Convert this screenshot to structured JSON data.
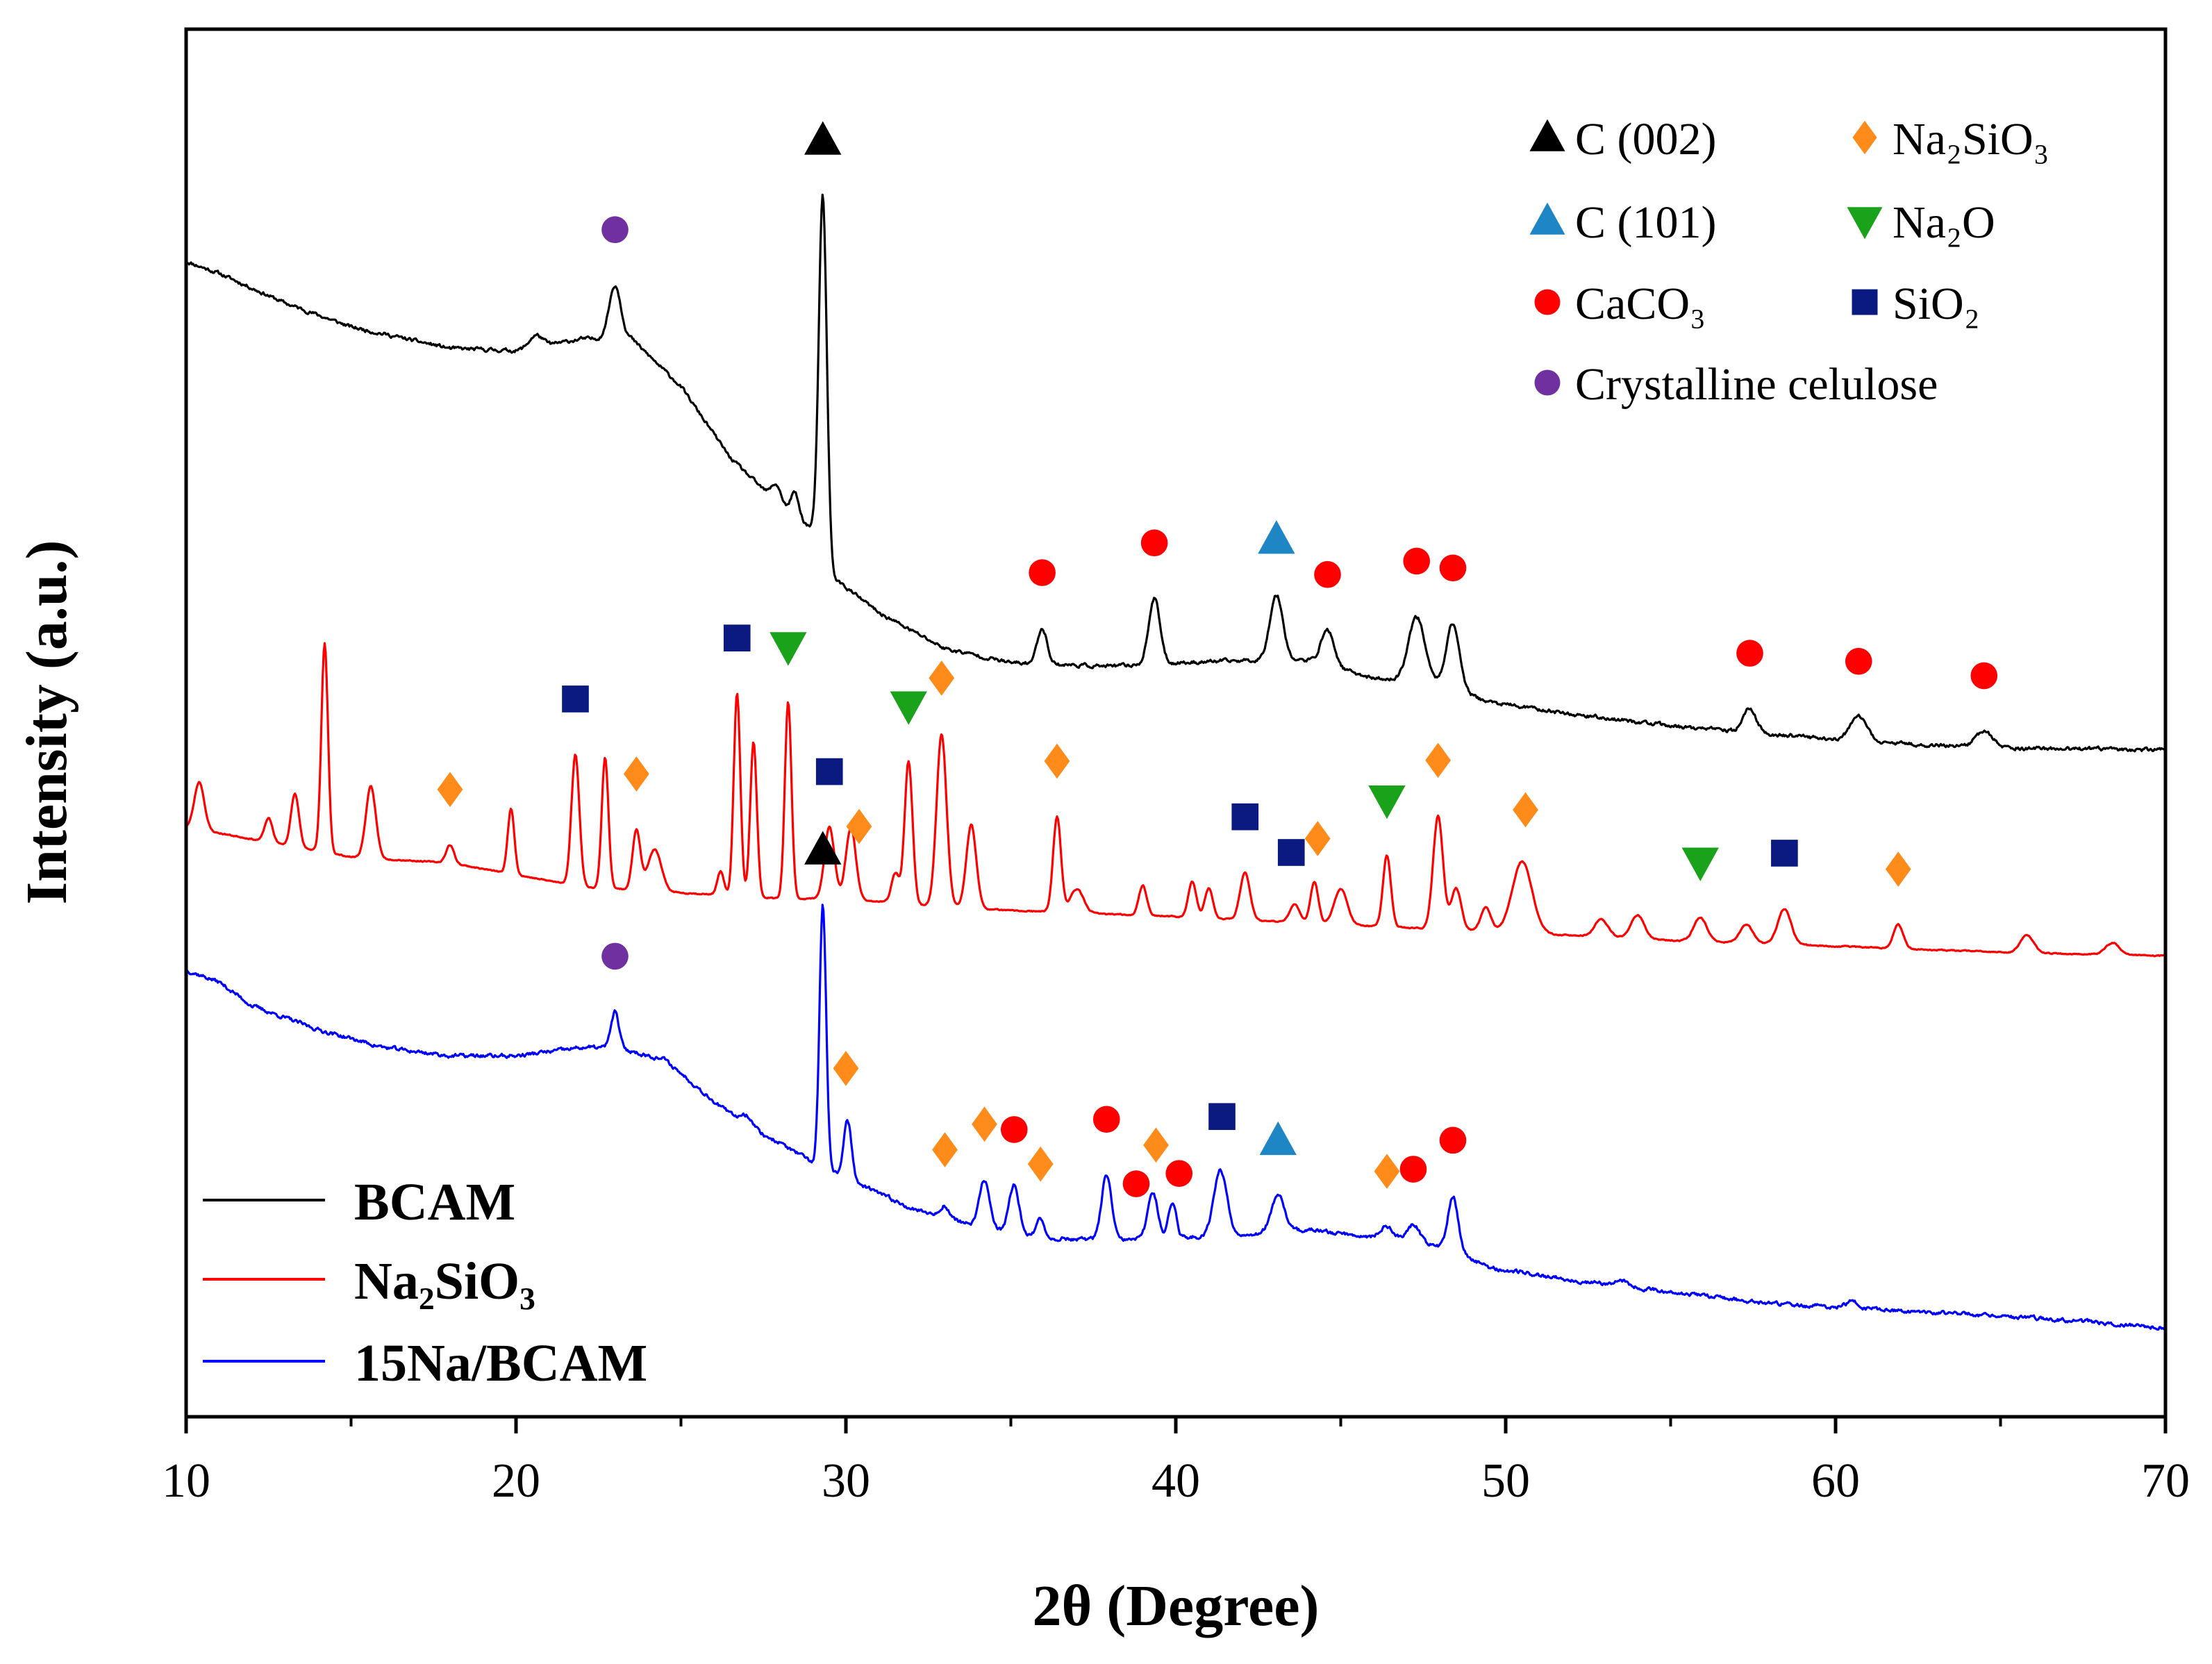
{
  "chart_data": {
    "type": "line",
    "title": "",
    "xlabel": "2θ (Degree)",
    "ylabel": "Intensity (a.u.)",
    "xlim": [
      10,
      70
    ],
    "xticks": [
      "10",
      "20",
      "30",
      "40",
      "50",
      "60",
      "70"
    ],
    "y_ticks_shown": false,
    "grid": false,
    "legend_position": "bottom-left",
    "series": [
      {
        "name": "BCAM",
        "color": "#000000",
        "noise": 0.012,
        "seed": 11,
        "baseline": [
          [
            10,
            8.55
          ],
          [
            11,
            8.45
          ],
          [
            13,
            8.2
          ],
          [
            15,
            8.0
          ],
          [
            18,
            7.82
          ],
          [
            20,
            7.8
          ],
          [
            22,
            7.9
          ],
          [
            23.5,
            7.9
          ],
          [
            25,
            7.5
          ],
          [
            26.5,
            6.9
          ],
          [
            28,
            6.5
          ],
          [
            29,
            6.3
          ],
          [
            29.6,
            5.9
          ],
          [
            31,
            5.6
          ],
          [
            33,
            5.3
          ],
          [
            35,
            5.18
          ],
          [
            38,
            5.15
          ],
          [
            40,
            5.18
          ],
          [
            42,
            5.2
          ],
          [
            44,
            5.2
          ],
          [
            46,
            5.05
          ],
          [
            48,
            5.0
          ],
          [
            49.5,
            4.85
          ],
          [
            52,
            4.75
          ],
          [
            55,
            4.65
          ],
          [
            58,
            4.58
          ],
          [
            62,
            4.5
          ],
          [
            66,
            4.46
          ],
          [
            70,
            4.45
          ]
        ],
        "peaks": [
          [
            20.6,
            0.1,
            0.2
          ],
          [
            23.0,
            0.45,
            0.18
          ],
          [
            27.9,
            0.15,
            0.15
          ],
          [
            28.45,
            0.2,
            0.12
          ],
          [
            29.3,
            3.0,
            0.12
          ],
          [
            35.95,
            0.3,
            0.15
          ],
          [
            39.35,
            0.55,
            0.17
          ],
          [
            43.05,
            0.55,
            0.2
          ],
          [
            44.6,
            0.3,
            0.2
          ],
          [
            47.3,
            0.55,
            0.25
          ],
          [
            48.4,
            0.55,
            0.2
          ],
          [
            57.4,
            0.2,
            0.2
          ],
          [
            60.7,
            0.2,
            0.25
          ],
          [
            64.5,
            0.13,
            0.25
          ]
        ]
      },
      {
        "name": "Na₂SiO₃",
        "color": "#ff0000",
        "noise": 0.004,
        "seed": 23,
        "baseline": [
          [
            10,
            3.8
          ],
          [
            12,
            3.7
          ],
          [
            15,
            3.55
          ],
          [
            18,
            3.5
          ],
          [
            20,
            3.4
          ],
          [
            22,
            3.3
          ],
          [
            25,
            3.25
          ],
          [
            28,
            3.2
          ],
          [
            30,
            3.2
          ],
          [
            32,
            3.15
          ],
          [
            35,
            3.1
          ],
          [
            38,
            3.07
          ],
          [
            40,
            3.05
          ],
          [
            45,
            2.98
          ],
          [
            50,
            2.92
          ],
          [
            55,
            2.85
          ],
          [
            60,
            2.8
          ],
          [
            65,
            2.75
          ],
          [
            70,
            2.72
          ]
        ],
        "peaks": [
          [
            10.4,
            0.4,
            0.15
          ],
          [
            12.5,
            0.2,
            0.12
          ],
          [
            13.3,
            0.45,
            0.12
          ],
          [
            14.2,
            1.75,
            0.1
          ],
          [
            15.6,
            0.6,
            0.15
          ],
          [
            18.0,
            0.15,
            0.12
          ],
          [
            19.85,
            0.55,
            0.1
          ],
          [
            21.8,
            1.1,
            0.12
          ],
          [
            22.7,
            1.1,
            0.1
          ],
          [
            23.65,
            0.5,
            0.12
          ],
          [
            24.2,
            0.35,
            0.2
          ],
          [
            26.2,
            0.2,
            0.1
          ],
          [
            26.7,
            1.7,
            0.1
          ],
          [
            27.2,
            1.3,
            0.1
          ],
          [
            28.25,
            1.65,
            0.1
          ],
          [
            29.5,
            0.6,
            0.15
          ],
          [
            30.15,
            0.6,
            0.15
          ],
          [
            31.5,
            0.25,
            0.12
          ],
          [
            31.9,
            1.2,
            0.12
          ],
          [
            32.9,
            1.45,
            0.15
          ],
          [
            33.8,
            0.7,
            0.15
          ],
          [
            36.4,
            0.8,
            0.12
          ],
          [
            37.0,
            0.2,
            0.2
          ],
          [
            39.0,
            0.25,
            0.12
          ],
          [
            40.5,
            0.3,
            0.12
          ],
          [
            41.0,
            0.25,
            0.12
          ],
          [
            42.1,
            0.4,
            0.15
          ],
          [
            43.6,
            0.15,
            0.15
          ],
          [
            44.2,
            0.35,
            0.12
          ],
          [
            45.0,
            0.3,
            0.2
          ],
          [
            46.4,
            0.6,
            0.12
          ],
          [
            47.95,
            0.95,
            0.15
          ],
          [
            48.5,
            0.35,
            0.15
          ],
          [
            49.4,
            0.2,
            0.15
          ],
          [
            50.5,
            0.6,
            0.3
          ],
          [
            52.9,
            0.15,
            0.2
          ],
          [
            54.0,
            0.2,
            0.2
          ],
          [
            55.9,
            0.2,
            0.2
          ],
          [
            57.3,
            0.15,
            0.2
          ],
          [
            58.45,
            0.3,
            0.2
          ],
          [
            61.9,
            0.2,
            0.15
          ],
          [
            65.8,
            0.15,
            0.2
          ],
          [
            68.4,
            0.1,
            0.2
          ]
        ]
      },
      {
        "name": "15Na/BCAM",
        "color": "#0000ff",
        "noise": 0.013,
        "seed": 37,
        "baseline": [
          [
            10,
            2.6
          ],
          [
            11,
            2.5
          ],
          [
            12,
            2.3
          ],
          [
            14,
            2.1
          ],
          [
            16,
            1.95
          ],
          [
            18,
            1.88
          ],
          [
            20,
            1.88
          ],
          [
            22,
            1.95
          ],
          [
            23,
            1.95
          ],
          [
            24.5,
            1.85
          ],
          [
            26,
            1.5
          ],
          [
            27,
            1.28
          ],
          [
            28,
            1.15
          ],
          [
            29,
            0.98
          ],
          [
            30,
            0.85
          ],
          [
            32,
            0.6
          ],
          [
            34,
            0.45
          ],
          [
            36,
            0.35
          ],
          [
            38,
            0.33
          ],
          [
            40,
            0.35
          ],
          [
            42,
            0.38
          ],
          [
            44,
            0.42
          ],
          [
            46,
            0.36
          ],
          [
            47.5,
            0.3
          ],
          [
            48.5,
            0.25
          ],
          [
            49.5,
            0.1
          ],
          [
            52,
            0.0
          ],
          [
            55,
            -0.1
          ],
          [
            58,
            -0.2
          ],
          [
            62,
            -0.26
          ],
          [
            66,
            -0.32
          ],
          [
            70,
            -0.4
          ]
        ],
        "peaks": [
          [
            23.0,
            0.3,
            0.12
          ],
          [
            27.0,
            0.1,
            0.2
          ],
          [
            29.3,
            2.2,
            0.1
          ],
          [
            30.05,
            0.5,
            0.12
          ],
          [
            33.0,
            0.1,
            0.12
          ],
          [
            34.2,
            0.4,
            0.15
          ],
          [
            35.1,
            0.4,
            0.15
          ],
          [
            35.9,
            0.15,
            0.12
          ],
          [
            37.9,
            0.55,
            0.15
          ],
          [
            39.3,
            0.4,
            0.15
          ],
          [
            39.9,
            0.3,
            0.12
          ],
          [
            41.35,
            0.55,
            0.2
          ],
          [
            43.1,
            0.3,
            0.2
          ],
          [
            46.4,
            0.1,
            0.2
          ],
          [
            47.2,
            0.15,
            0.2
          ],
          [
            48.4,
            0.45,
            0.15
          ],
          [
            53.5,
            0.05,
            0.2
          ],
          [
            60.5,
            0.05,
            0.2
          ]
        ]
      }
    ],
    "marker_legend": [
      {
        "label": "C (002)",
        "symbol": "triangle-up",
        "color": "#000000"
      },
      {
        "label": "Na₂SiO₃",
        "symbol": "diamond",
        "color": "#ff8c1a"
      },
      {
        "label": "C (101)",
        "symbol": "triangle-up",
        "color": "#1e86c5"
      },
      {
        "label": "Na₂O",
        "symbol": "triangle-down",
        "color": "#1aa31a"
      },
      {
        "label": "CaCO₃",
        "symbol": "circle",
        "color": "#ff0000"
      },
      {
        "label": "SiO₂",
        "symbol": "square",
        "color": "#0a1a80"
      },
      {
        "label": "Crystalline celulose",
        "symbol": "circle",
        "color": "#7030a0"
      }
    ],
    "phase_markers": [
      {
        "x": 29.3,
        "series": 0,
        "legend": 0
      },
      {
        "x": 23.0,
        "series": 0,
        "legend": 6
      },
      {
        "x": 43.05,
        "series": 0,
        "legend": 2
      },
      {
        "x": 35.95,
        "series": 0,
        "legend": 4
      },
      {
        "x": 39.35,
        "series": 0,
        "legend": 4
      },
      {
        "x": 44.6,
        "series": 0,
        "legend": 4
      },
      {
        "x": 47.3,
        "series": 0,
        "legend": 4
      },
      {
        "x": 48.4,
        "series": 0,
        "legend": 4
      },
      {
        "x": 57.4,
        "series": 0,
        "legend": 4
      },
      {
        "x": 60.7,
        "series": 0,
        "legend": 4
      },
      {
        "x": 64.5,
        "series": 0,
        "legend": 4
      },
      {
        "x": 18.0,
        "series": 1,
        "legend": 1
      },
      {
        "x": 21.8,
        "series": 1,
        "legend": 5
      },
      {
        "x": 23.65,
        "series": 1,
        "legend": 1
      },
      {
        "x": 26.7,
        "series": 1,
        "legend": 5
      },
      {
        "x": 28.25,
        "series": 1,
        "legend": 3
      },
      {
        "x": 29.5,
        "series": 1,
        "legend": 5
      },
      {
        "x": 30.4,
        "series": 1,
        "legend": 1
      },
      {
        "x": 31.9,
        "series": 1,
        "legend": 3
      },
      {
        "x": 32.9,
        "series": 1,
        "legend": 1
      },
      {
        "x": 36.4,
        "series": 1,
        "legend": 1
      },
      {
        "x": 42.1,
        "series": 1,
        "legend": 5
      },
      {
        "x": 43.5,
        "series": 1,
        "legend": 5
      },
      {
        "x": 44.3,
        "series": 1,
        "legend": 1
      },
      {
        "x": 46.4,
        "series": 1,
        "legend": 3
      },
      {
        "x": 47.95,
        "series": 1,
        "legend": 1
      },
      {
        "x": 50.6,
        "series": 1,
        "legend": 1
      },
      {
        "x": 55.9,
        "series": 1,
        "legend": 3
      },
      {
        "x": 58.45,
        "series": 1,
        "legend": 5
      },
      {
        "x": 61.9,
        "series": 1,
        "legend": 1
      },
      {
        "x": 29.3,
        "series": 2,
        "legend": 0
      },
      {
        "x": 23.0,
        "series": 2,
        "legend": 6
      },
      {
        "x": 30.0,
        "series": 2,
        "legend": 1
      },
      {
        "x": 33.0,
        "series": 2,
        "legend": 1
      },
      {
        "x": 34.2,
        "series": 2,
        "legend": 1
      },
      {
        "x": 35.1,
        "series": 2,
        "legend": 4
      },
      {
        "x": 35.9,
        "series": 2,
        "legend": 1
      },
      {
        "x": 37.9,
        "series": 2,
        "legend": 4
      },
      {
        "x": 38.8,
        "series": 2,
        "legend": 4
      },
      {
        "x": 39.4,
        "series": 2,
        "legend": 1
      },
      {
        "x": 40.1,
        "series": 2,
        "legend": 4
      },
      {
        "x": 41.4,
        "series": 2,
        "legend": 5
      },
      {
        "x": 43.1,
        "series": 2,
        "legend": 2
      },
      {
        "x": 46.4,
        "series": 2,
        "legend": 1
      },
      {
        "x": 47.2,
        "series": 2,
        "legend": 4
      },
      {
        "x": 48.4,
        "series": 2,
        "legend": 4
      }
    ]
  }
}
